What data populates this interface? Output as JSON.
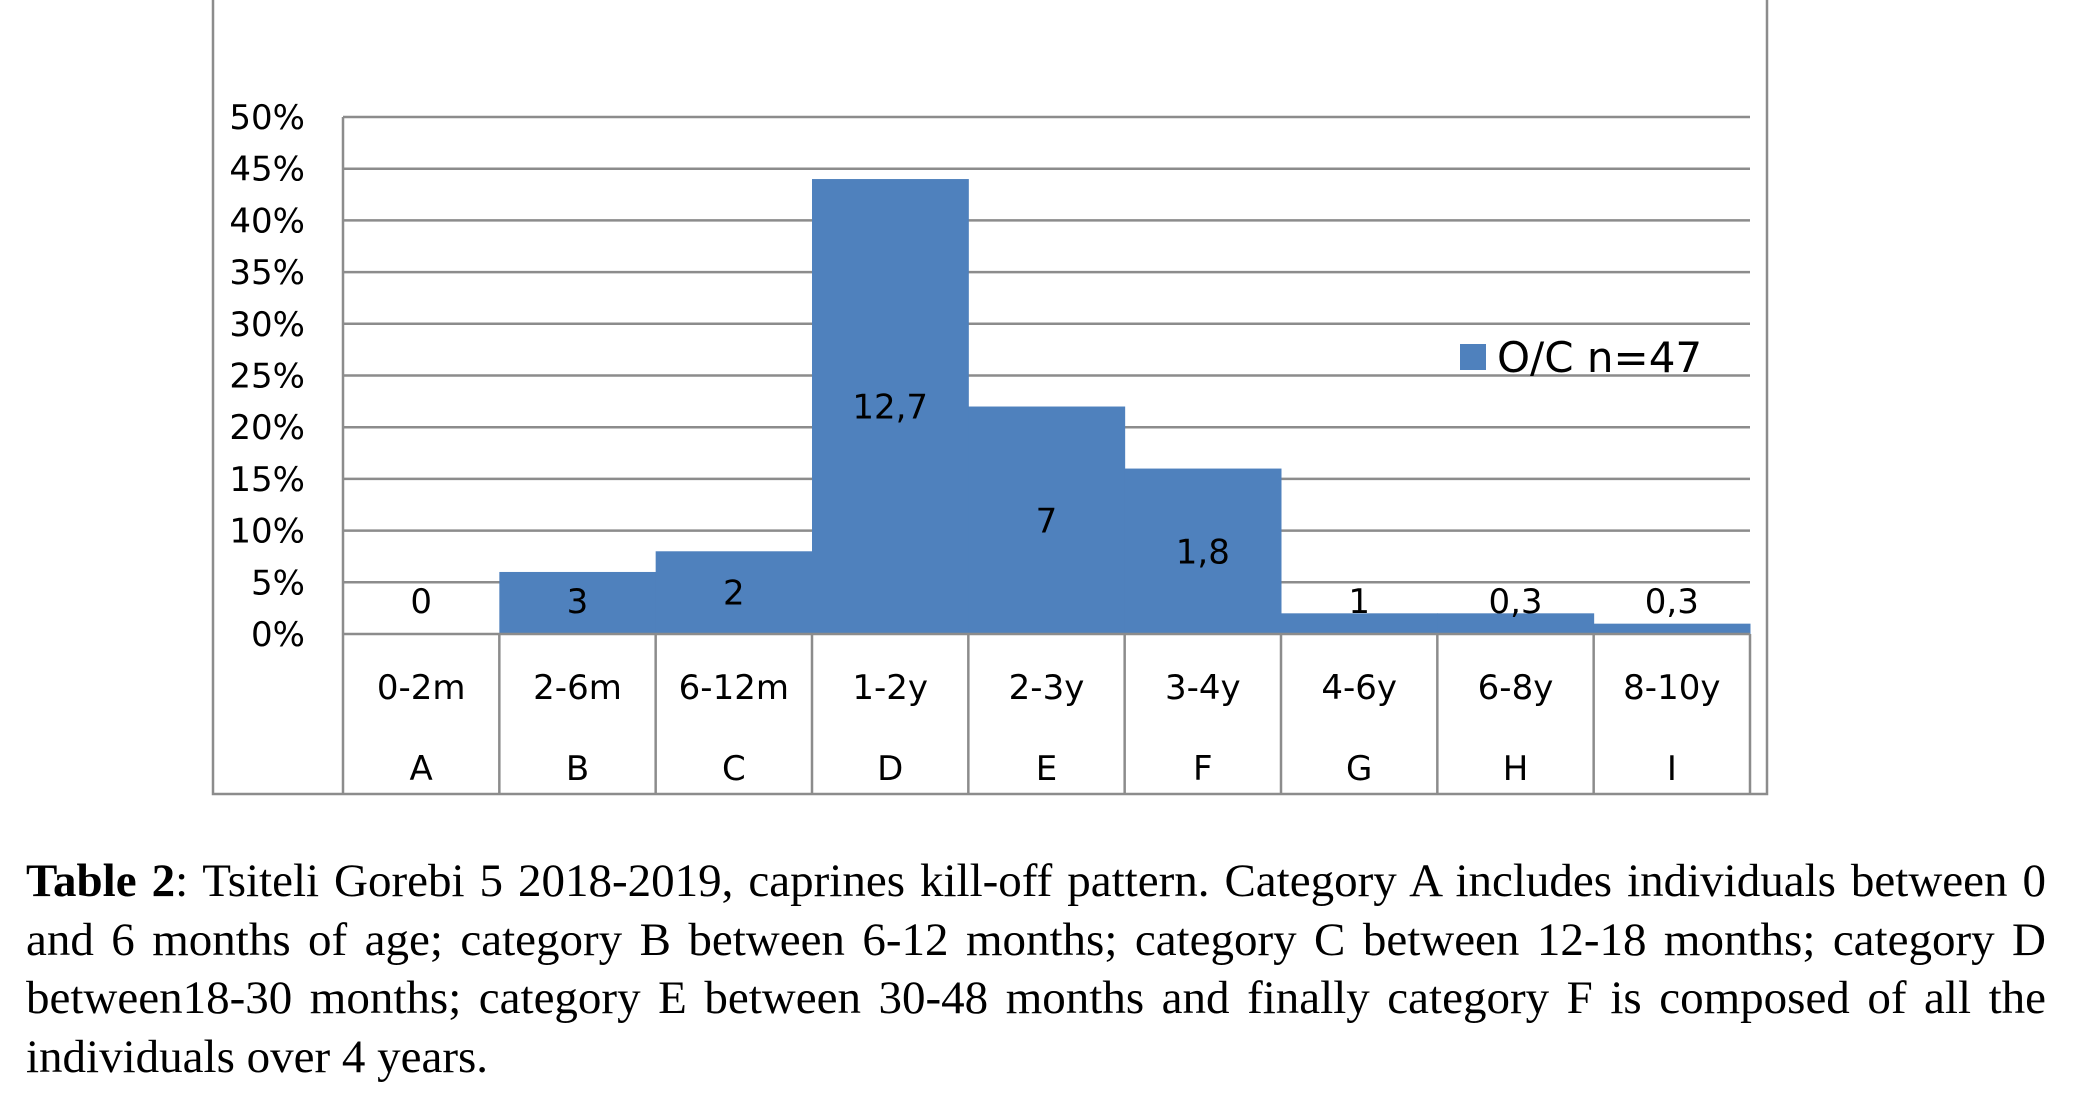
{
  "chart_data": {
    "type": "bar",
    "title": "",
    "xlabel": "",
    "ylabel": "",
    "ylim": [
      0,
      50
    ],
    "y_tick_labels": [
      "0%",
      "5%",
      "10%",
      "15%",
      "20%",
      "25%",
      "30%",
      "35%",
      "40%",
      "45%",
      "50%"
    ],
    "categories": [
      "0-2m",
      "2-6m",
      "6-12m",
      "1-2y",
      "2-3y",
      "3-4y",
      "4-6y",
      "6-8y",
      "8-10y"
    ],
    "category_letters": [
      "A",
      "B",
      "C",
      "D",
      "E",
      "F",
      "G",
      "H",
      "I"
    ],
    "series": [
      {
        "name": "O/C n=47",
        "values": [
          0,
          6,
          8,
          44,
          22,
          16,
          2,
          2,
          1
        ],
        "data_labels": [
          "0",
          "3",
          "2",
          "12,7",
          "7",
          "1,8",
          "1",
          "0,3",
          "0,3"
        ]
      }
    ],
    "bar_color": "#4f81bd",
    "grid": true,
    "legend_position": "right"
  },
  "caption": {
    "label": "Table 2",
    "text": ": Tsiteli Gorebi 5 2018-2019, caprines kill-off pattern. Category A includes individuals between 0 and 6 months of age; category B between 6-12 months; category C between 12-18 months; category D between18-30 months; category E between 30-48 months and finally category F is composed of all the individuals over 4 years."
  }
}
